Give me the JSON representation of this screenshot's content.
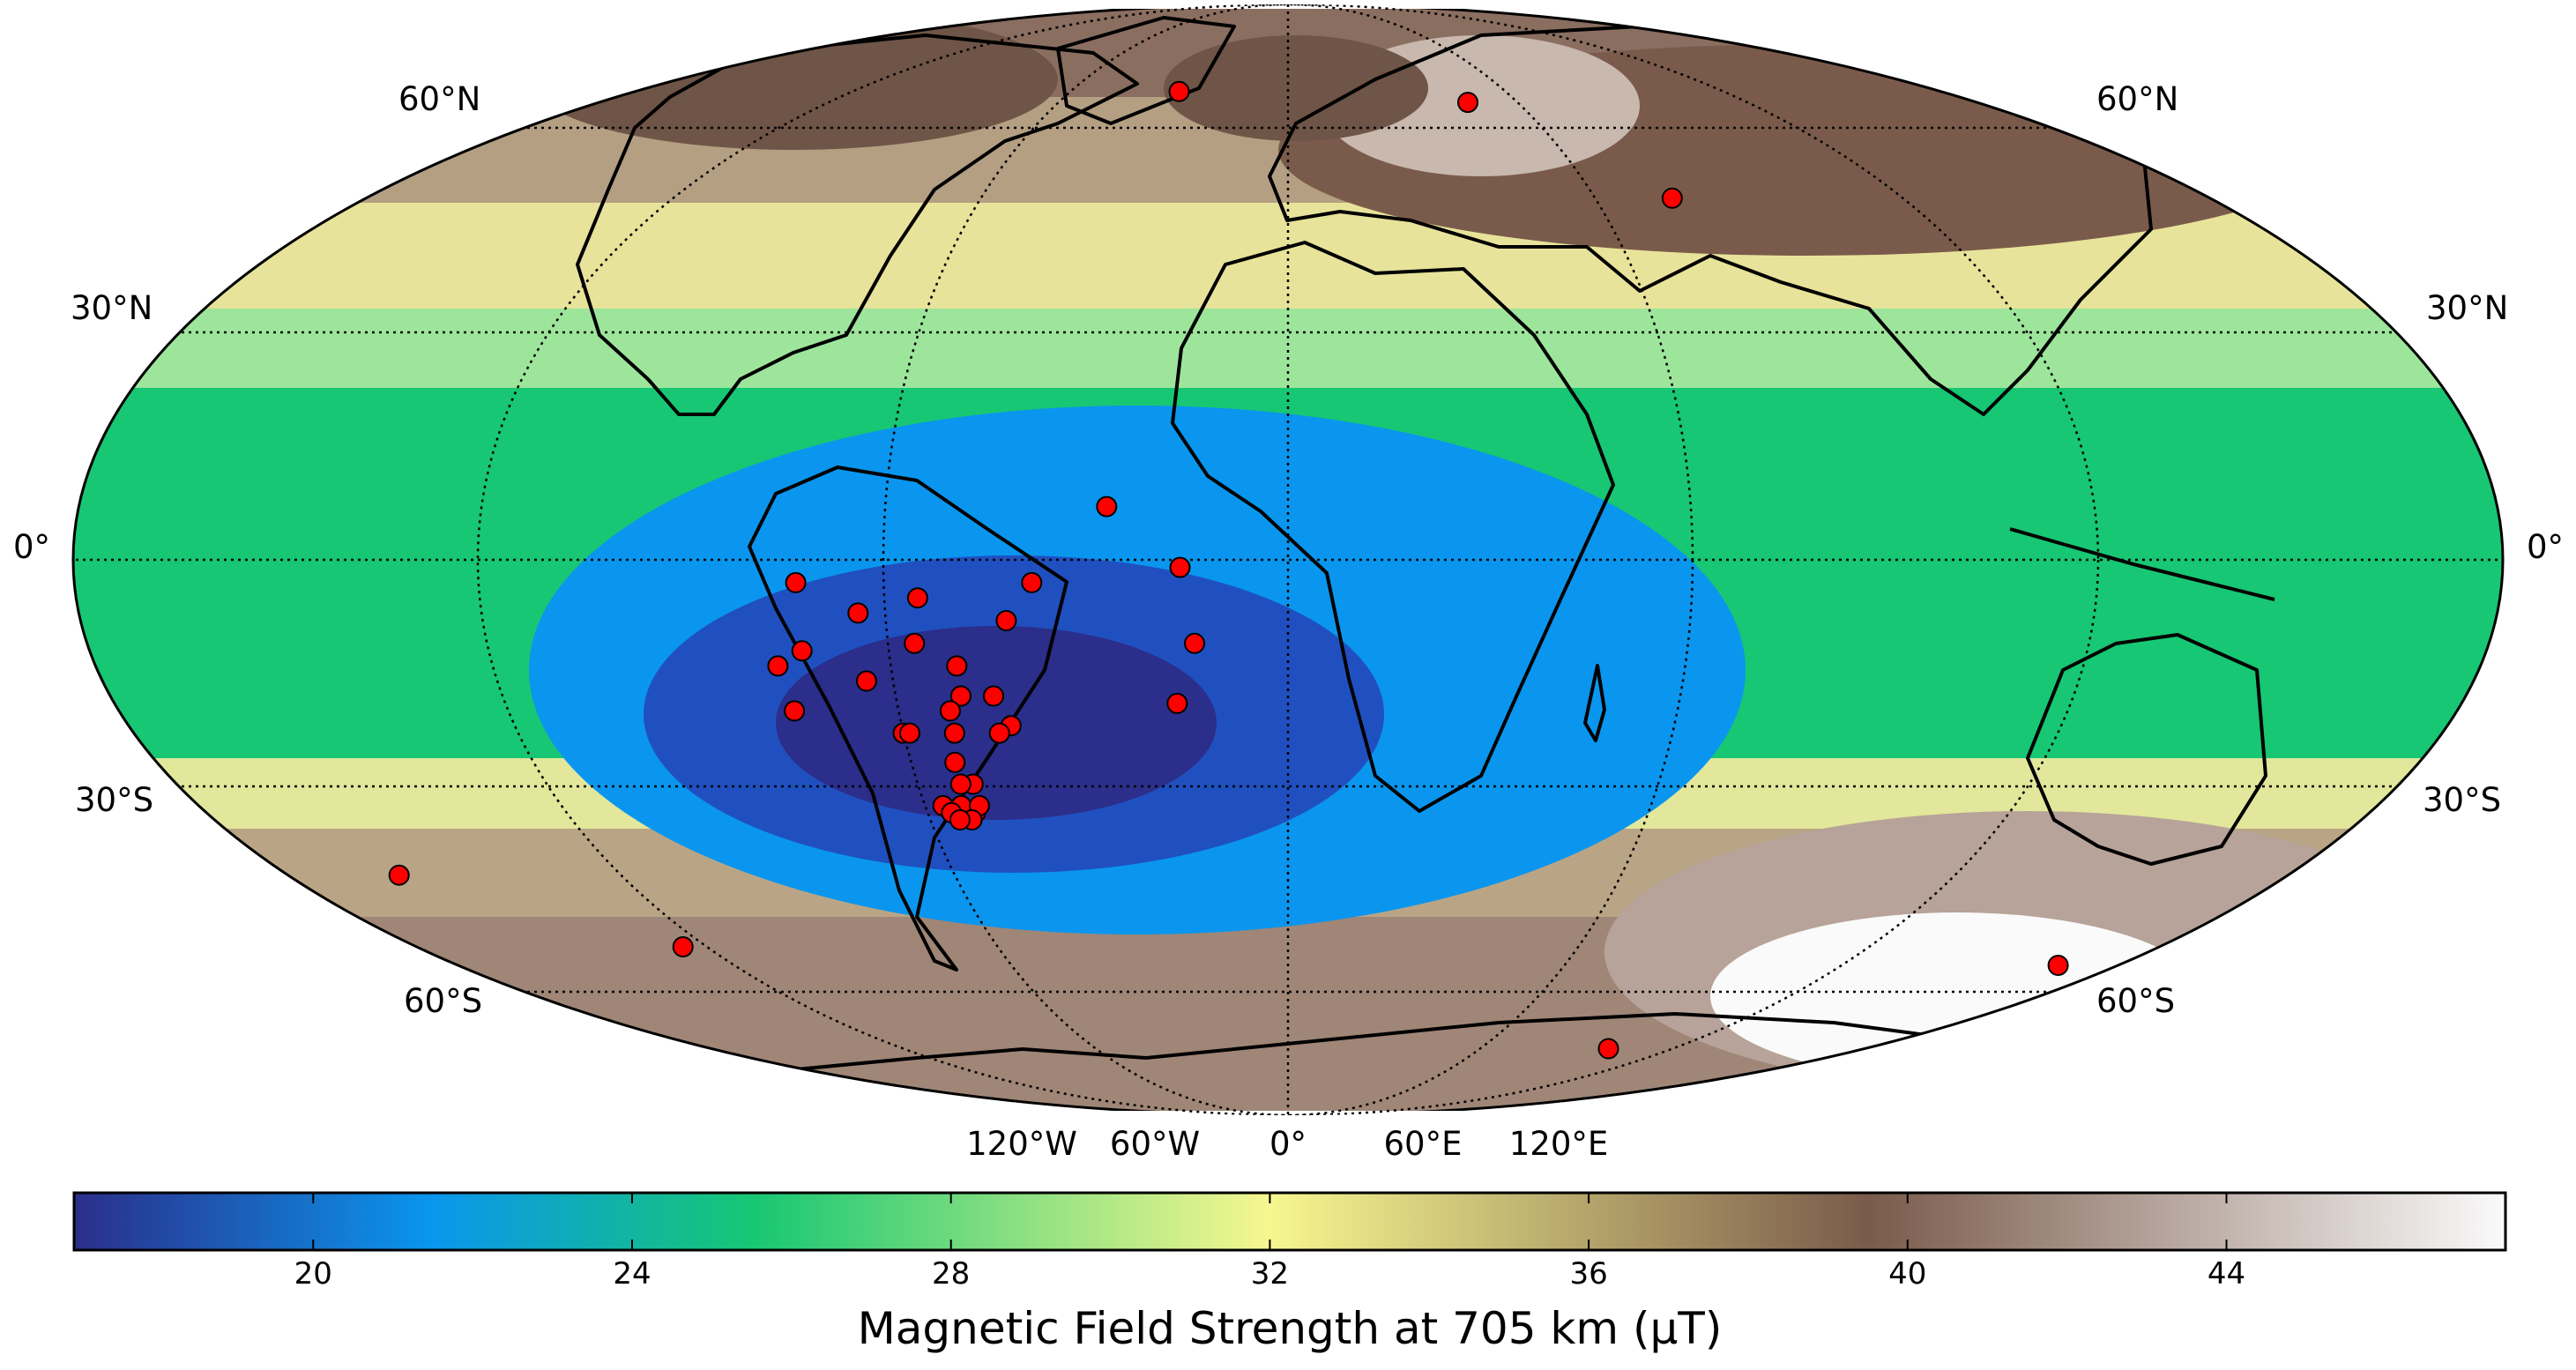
{
  "map": {
    "projection": "mollweide",
    "parallel_labels_left": [
      "60°N",
      "30°N",
      "0°",
      "30°S",
      "60°S"
    ],
    "parallel_labels_right": [
      "60°N",
      "30°N",
      "0°",
      "30°S",
      "60°S"
    ],
    "meridian_labels": [
      "120°W",
      "60°W",
      "0°",
      "60°E",
      "120°E"
    ],
    "gridline_style": "dotted",
    "coastlines": true,
    "markers": {
      "color": "#ff0000",
      "edge_color": "#000000",
      "points": [
        {
          "lon": -30,
          "lat": 68
        },
        {
          "lon": 47,
          "lat": 66
        },
        {
          "lon": 75,
          "lat": 50
        },
        {
          "lon": -27,
          "lat": 7
        },
        {
          "lon": -16,
          "lat": -1
        },
        {
          "lon": -14,
          "lat": -11
        },
        {
          "lon": -17,
          "lat": -19
        },
        {
          "lon": -73,
          "lat": -3
        },
        {
          "lon": -64,
          "lat": -7
        },
        {
          "lon": -55,
          "lat": -5
        },
        {
          "lon": -38,
          "lat": -3
        },
        {
          "lon": -42,
          "lat": -8
        },
        {
          "lon": -73,
          "lat": -12
        },
        {
          "lon": -56,
          "lat": -11
        },
        {
          "lon": -77,
          "lat": -14
        },
        {
          "lon": -50,
          "lat": -14
        },
        {
          "lon": -64,
          "lat": -16
        },
        {
          "lon": -50,
          "lat": -18
        },
        {
          "lon": -76,
          "lat": -20
        },
        {
          "lon": -52,
          "lat": -20
        },
        {
          "lon": -45,
          "lat": -18
        },
        {
          "lon": -43,
          "lat": -22
        },
        {
          "lon": -52,
          "lat": -23
        },
        {
          "lon": -60,
          "lat": -23
        },
        {
          "lon": -59,
          "lat": -23
        },
        {
          "lon": -45,
          "lat": -23
        },
        {
          "lon": -53,
          "lat": -27
        },
        {
          "lon": -51,
          "lat": -30
        },
        {
          "lon": -53,
          "lat": -30
        },
        {
          "lon": -57,
          "lat": -33
        },
        {
          "lon": -52,
          "lat": -34
        },
        {
          "lon": -54,
          "lat": -33
        },
        {
          "lon": -51,
          "lat": -33
        },
        {
          "lon": -56,
          "lat": -34
        },
        {
          "lon": -53,
          "lat": -35
        },
        {
          "lon": -55,
          "lat": -35
        },
        {
          "lon": -160,
          "lat": -43
        },
        {
          "lon": -125,
          "lat": -54
        },
        {
          "lon": 167,
          "lat": -57
        },
        {
          "lon": 100,
          "lat": -72
        }
      ]
    }
  },
  "colorbar": {
    "title": "Magnetic Field Strength at 705 km (μT)",
    "ticks": [
      "20",
      "24",
      "28",
      "32",
      "36",
      "40",
      "44"
    ],
    "tick_values": [
      20,
      24,
      28,
      32,
      36,
      40,
      44
    ],
    "range": [
      17,
      47.5
    ],
    "colors": [
      "#2b2e8a",
      "#0a96ee",
      "#17c773",
      "#f7f78f",
      "#7a5b4b",
      "#fafafa"
    ],
    "color_stops": [
      17,
      21.5,
      25.5,
      32,
      39.5,
      47.5
    ]
  }
}
